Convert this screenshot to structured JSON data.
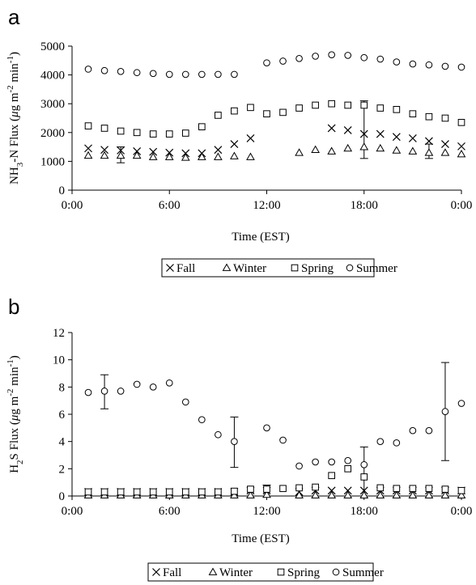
{
  "figure": {
    "panels": [
      {
        "letter": "a",
        "ylabel_parts": [
          "NH",
          "3",
          "-N Flux (",
          "μ",
          "g m",
          "-2",
          " min",
          "-1",
          ")"
        ],
        "xlabel": "Time (EST)",
        "yticks": [
          "0",
          "1000",
          "2000",
          "3000",
          "4000",
          "5000"
        ],
        "xticks": [
          "0:00",
          "6:00",
          "12:00",
          "18:00",
          "0:00"
        ],
        "legend": [
          "Fall",
          "Winter",
          "Spring",
          "Summer"
        ]
      },
      {
        "letter": "b",
        "ylabel_parts": [
          "H",
          "2",
          "S Flux (",
          "μ",
          "g m",
          "-2",
          " min",
          "-1",
          ")"
        ],
        "xlabel": "Time (EST)",
        "yticks": [
          "0",
          "2",
          "4",
          "6",
          "8",
          "10",
          "12"
        ],
        "xticks": [
          "0:00",
          "6:00",
          "12:00",
          "18:00",
          "0:00"
        ],
        "legend": [
          "Fall",
          "Winter",
          "Spring",
          "Summer"
        ]
      }
    ]
  },
  "chart_data": [
    {
      "type": "scatter",
      "panel": "a",
      "xlabel": "Time (EST)",
      "ylabel": "NH3-N Flux (μg m-2 min-1)",
      "xlim": [
        0,
        24
      ],
      "ylim": [
        0,
        5000
      ],
      "x_ticks_hours": [
        0,
        6,
        12,
        18,
        24
      ],
      "grid": false,
      "legend_position": "bottom",
      "series": [
        {
          "name": "Fall",
          "marker": "x",
          "x": [
            1,
            2,
            3,
            4,
            5,
            6,
            7,
            8,
            9,
            10,
            11,
            16,
            17,
            18,
            19,
            20,
            21,
            22,
            23,
            24
          ],
          "y": [
            1450,
            1400,
            1380,
            1350,
            1330,
            1300,
            1280,
            1280,
            1400,
            1600,
            1800,
            2150,
            2080,
            1950,
            1950,
            1850,
            1800,
            1700,
            1600,
            1520
          ]
        },
        {
          "name": "Winter",
          "marker": "triangle",
          "x": [
            1,
            2,
            3,
            4,
            5,
            6,
            7,
            8,
            9,
            10,
            11,
            14,
            15,
            16,
            17,
            18,
            19,
            20,
            21,
            22,
            23,
            24
          ],
          "y": [
            1200,
            1200,
            1200,
            1200,
            1150,
            1150,
            1130,
            1150,
            1150,
            1180,
            1150,
            1300,
            1400,
            1350,
            1450,
            1500,
            1450,
            1380,
            1350,
            1300,
            1300,
            1250
          ]
        },
        {
          "name": "Spring",
          "marker": "square",
          "x": [
            1,
            2,
            3,
            4,
            5,
            6,
            7,
            8,
            9,
            10,
            11,
            12,
            13,
            14,
            15,
            16,
            17,
            18,
            19,
            20,
            21,
            22,
            23,
            24
          ],
          "y": [
            2230,
            2150,
            2050,
            2000,
            1950,
            1950,
            1980,
            2200,
            2600,
            2750,
            2870,
            2650,
            2700,
            2850,
            2950,
            3000,
            2950,
            2950,
            2850,
            2800,
            2650,
            2550,
            2500,
            2350
          ]
        },
        {
          "name": "Summer",
          "marker": "circle",
          "x": [
            1,
            2,
            3,
            4,
            5,
            6,
            7,
            8,
            9,
            10,
            12,
            13,
            14,
            15,
            16,
            17,
            18,
            19,
            20,
            21,
            22,
            23,
            24
          ],
          "y": [
            4200,
            4150,
            4120,
            4080,
            4050,
            4020,
            4020,
            4020,
            4020,
            4020,
            4420,
            4480,
            4570,
            4650,
            4700,
            4680,
            4600,
            4550,
            4450,
            4380,
            4350,
            4300,
            4270
          ]
        }
      ],
      "error_bars": [
        {
          "x": 3,
          "low": 950,
          "high": 1500
        },
        {
          "x": 18,
          "low": 1100,
          "high": 3100
        },
        {
          "x": 22,
          "low": 1100,
          "high": 1600
        }
      ]
    },
    {
      "type": "scatter",
      "panel": "b",
      "xlabel": "Time (EST)",
      "ylabel": "H2S Flux (μg m-2 min-1)",
      "xlim": [
        0,
        24
      ],
      "ylim": [
        0,
        12
      ],
      "x_ticks_hours": [
        0,
        6,
        12,
        18,
        24
      ],
      "grid": false,
      "legend_position": "bottom",
      "series": [
        {
          "name": "Fall",
          "marker": "x",
          "x": [
            1,
            2,
            3,
            4,
            5,
            6,
            7,
            8,
            9,
            10,
            11,
            12,
            14,
            15,
            16,
            17,
            18,
            19,
            20,
            21,
            22,
            23,
            24
          ],
          "y": [
            0.3,
            0.3,
            0.3,
            0.3,
            0.3,
            0.3,
            0.3,
            0.3,
            0.3,
            0.3,
            0.4,
            0.4,
            0.3,
            0.4,
            0.4,
            0.4,
            0.4,
            0.4,
            0.4,
            0.4,
            0.4,
            0.4,
            0.4
          ]
        },
        {
          "name": "Winter",
          "marker": "triangle",
          "x": [
            1,
            2,
            3,
            4,
            5,
            6,
            7,
            8,
            9,
            10,
            11,
            12,
            14,
            15,
            16,
            17,
            18,
            19,
            20,
            21,
            22,
            23,
            24
          ],
          "y": [
            0.05,
            0.05,
            0.05,
            0.05,
            0.05,
            0.05,
            0.05,
            0.05,
            0.05,
            0.05,
            0.05,
            0.1,
            0.05,
            0.05,
            0.05,
            0.05,
            0.05,
            0.05,
            0.05,
            0.05,
            0.05,
            0.05,
            0.05
          ]
        },
        {
          "name": "Spring",
          "marker": "square",
          "x": [
            1,
            2,
            3,
            4,
            5,
            6,
            7,
            8,
            9,
            10,
            11,
            12,
            13,
            14,
            15,
            16,
            17,
            18,
            19,
            20,
            21,
            22,
            23,
            24
          ],
          "y": [
            0.3,
            0.3,
            0.3,
            0.3,
            0.3,
            0.3,
            0.3,
            0.3,
            0.3,
            0.35,
            0.5,
            0.5,
            0.55,
            0.6,
            0.65,
            1.5,
            2.0,
            1.4,
            0.6,
            0.55,
            0.55,
            0.55,
            0.5,
            0.4
          ]
        },
        {
          "name": "Summer",
          "marker": "circle",
          "x": [
            1,
            2,
            3,
            4,
            5,
            6,
            7,
            8,
            9,
            10,
            12,
            13,
            14,
            15,
            16,
            17,
            18,
            19,
            20,
            21,
            22,
            23,
            24
          ],
          "y": [
            7.6,
            7.7,
            7.7,
            8.2,
            8.0,
            8.3,
            6.9,
            5.6,
            4.5,
            4.0,
            5.0,
            4.1,
            2.2,
            2.5,
            2.5,
            2.6,
            2.3,
            4.0,
            3.9,
            4.8,
            4.8,
            6.2,
            6.8
          ]
        }
      ],
      "error_bars": [
        {
          "x": 2,
          "low": 6.4,
          "high": 8.9
        },
        {
          "x": 10,
          "low": 2.1,
          "high": 5.8
        },
        {
          "x": 12,
          "low": 0.0,
          "high": 0.8
        },
        {
          "x": 18,
          "low": 0.0,
          "high": 3.6
        },
        {
          "x": 23,
          "low": 2.6,
          "high": 9.8
        }
      ]
    }
  ]
}
